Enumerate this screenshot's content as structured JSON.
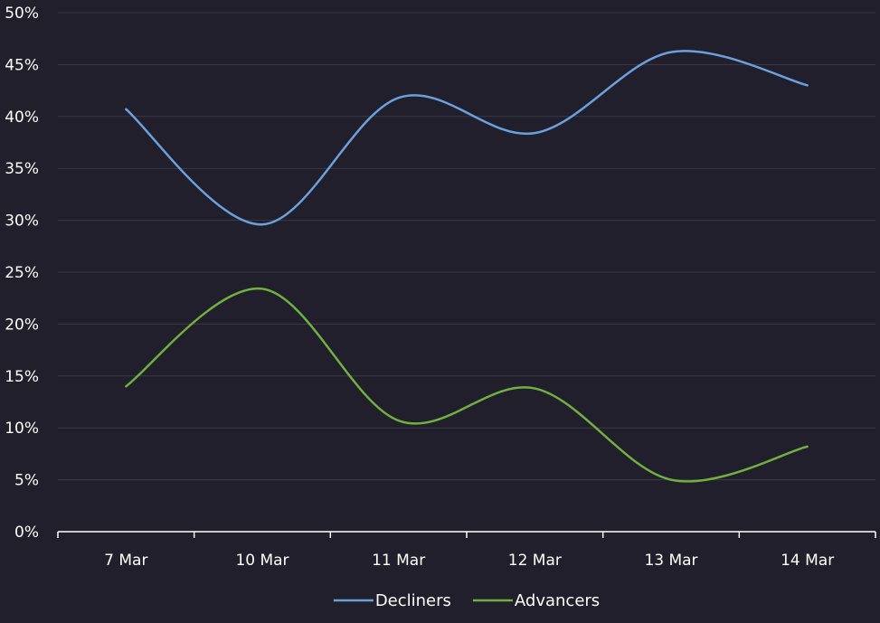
{
  "chart_data": {
    "type": "line",
    "categories": [
      "7 Mar",
      "10 Mar",
      "11 Mar",
      "12 Mar",
      "13 Mar",
      "14 Mar"
    ],
    "series": [
      {
        "name": "Decliners",
        "color": "#6aa0dc",
        "values": [
          40.7,
          29.6,
          41.8,
          38.4,
          46.2,
          43.0
        ]
      },
      {
        "name": "Advancers",
        "color": "#6fb03f",
        "values": [
          14.0,
          23.4,
          10.7,
          13.8,
          5.0,
          8.2
        ]
      }
    ],
    "ylim": [
      0,
      50
    ],
    "yticks": [
      0,
      5,
      10,
      15,
      20,
      25,
      30,
      35,
      40,
      45,
      50
    ],
    "ytick_labels": [
      "0%",
      "5%",
      "10%",
      "15%",
      "20%",
      "25%",
      "30%",
      "35%",
      "40%",
      "45%",
      "50%"
    ],
    "grid": true,
    "legend": "bottom-center",
    "background": "#201f2b",
    "gridline_color": "#3b3a47",
    "axis_color": "#ffffff"
  }
}
